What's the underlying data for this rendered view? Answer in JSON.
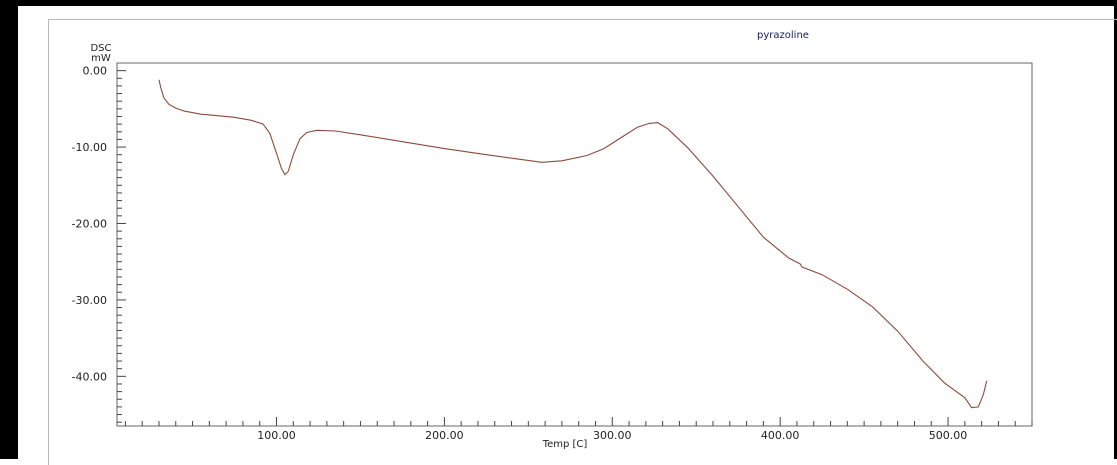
{
  "chart_data": {
    "type": "line",
    "title": "pyrazoline",
    "ylabel_line1": "DSC",
    "ylabel_line2": "mW",
    "xlabel": "Temp  [C]",
    "xlim": [
      5,
      550
    ],
    "ylim": [
      -46.5,
      1.0
    ],
    "x_ticks": [
      100,
      200,
      300,
      400,
      500
    ],
    "x_tick_labels": [
      "100.00",
      "200.00",
      "300.00",
      "400.00",
      "500.00"
    ],
    "y_ticks": [
      0,
      -10,
      -20,
      -30,
      -40
    ],
    "y_tick_labels": [
      "0.00",
      "-10.00",
      "-20.00",
      "-30.00",
      "-40.00"
    ],
    "grid": false,
    "line_color": "#8b4a3c",
    "series": [
      {
        "values": [
          [
            30,
            -1.2
          ],
          [
            31,
            -2.2
          ],
          [
            33,
            -3.6
          ],
          [
            36,
            -4.4
          ],
          [
            40,
            -4.9
          ],
          [
            45,
            -5.3
          ],
          [
            55,
            -5.7
          ],
          [
            65,
            -5.9
          ],
          [
            75,
            -6.1
          ],
          [
            85,
            -6.5
          ],
          [
            92,
            -7.0
          ],
          [
            96,
            -8.2
          ],
          [
            100,
            -10.8
          ],
          [
            103,
            -12.8
          ],
          [
            105,
            -13.6
          ],
          [
            107,
            -13.2
          ],
          [
            110,
            -11.0
          ],
          [
            114,
            -8.9
          ],
          [
            118,
            -8.1
          ],
          [
            124,
            -7.8
          ],
          [
            135,
            -7.9
          ],
          [
            150,
            -8.4
          ],
          [
            175,
            -9.3
          ],
          [
            200,
            -10.2
          ],
          [
            225,
            -11.0
          ],
          [
            245,
            -11.6
          ],
          [
            258,
            -12.0
          ],
          [
            270,
            -11.8
          ],
          [
            285,
            -11.1
          ],
          [
            295,
            -10.2
          ],
          [
            305,
            -8.8
          ],
          [
            315,
            -7.4
          ],
          [
            322,
            -6.9
          ],
          [
            327,
            -6.8
          ],
          [
            333,
            -7.6
          ],
          [
            345,
            -10.1
          ],
          [
            360,
            -13.8
          ],
          [
            375,
            -17.8
          ],
          [
            390,
            -21.8
          ],
          [
            405,
            -24.5
          ],
          [
            412,
            -25.3
          ],
          [
            413,
            -25.7
          ],
          [
            425,
            -26.7
          ],
          [
            440,
            -28.6
          ],
          [
            455,
            -30.9
          ],
          [
            470,
            -34.1
          ],
          [
            485,
            -38.0
          ],
          [
            498,
            -40.9
          ],
          [
            510,
            -42.8
          ],
          [
            514,
            -44.1
          ],
          [
            518,
            -44.0
          ],
          [
            521,
            -42.4
          ],
          [
            523,
            -40.6
          ]
        ]
      }
    ]
  }
}
